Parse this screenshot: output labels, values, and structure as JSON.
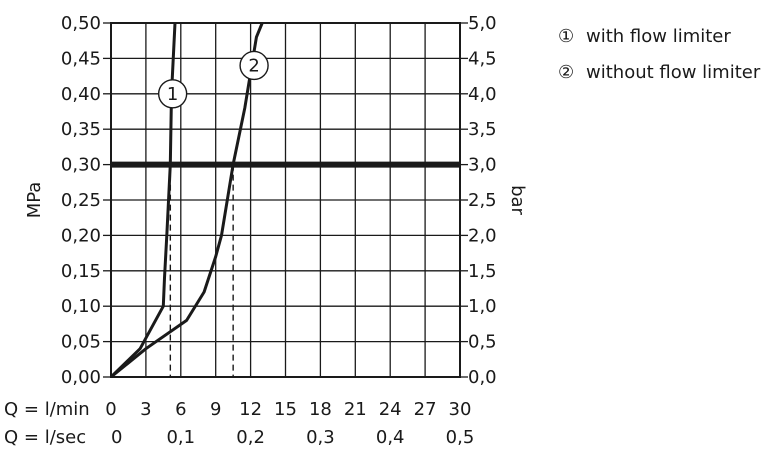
{
  "chart_data": {
    "type": "line",
    "x_axes": [
      {
        "label": "Q = l/min",
        "ticks": [
          "0",
          "3",
          "6",
          "9",
          "12",
          "15",
          "18",
          "21",
          "24",
          "27",
          "30"
        ],
        "range": [
          0,
          30
        ]
      },
      {
        "label": "Q = l/sec",
        "ticks": [
          "0",
          "0,1",
          "0,2",
          "0,3",
          "0,4",
          "0,5"
        ],
        "range": [
          0,
          0.5
        ]
      }
    ],
    "y_axes": [
      {
        "label": "MPa",
        "ticks": [
          "0,00",
          "0,05",
          "0,10",
          "0,15",
          "0,20",
          "0,25",
          "0,30",
          "0,35",
          "0,40",
          "0,45",
          "0,50"
        ],
        "range": [
          0,
          0.5
        ]
      },
      {
        "label": "bar",
        "ticks": [
          "0,0",
          "0,5",
          "1,0",
          "1,5",
          "2,0",
          "2,5",
          "3,0",
          "3,5",
          "4,0",
          "4,5",
          "5,0"
        ],
        "range": [
          0,
          5
        ]
      }
    ],
    "grid": true,
    "reference_line": {
      "y": 0.3
    },
    "series": [
      {
        "marker": "1",
        "name": "with flow limiter",
        "points": [
          [
            0,
            0
          ],
          [
            2.5,
            0.04
          ],
          [
            4.5,
            0.1
          ],
          [
            4.6,
            0.14
          ],
          [
            4.8,
            0.2
          ],
          [
            5.1,
            0.3
          ],
          [
            5.2,
            0.4
          ],
          [
            5.5,
            0.5
          ]
        ],
        "x_at_reference": 5.1,
        "label_at": [
          5.3,
          0.4
        ]
      },
      {
        "marker": "2",
        "name": "without flow limiter",
        "points": [
          [
            0,
            0
          ],
          [
            3,
            0.04
          ],
          [
            6.5,
            0.08
          ],
          [
            8,
            0.12
          ],
          [
            9,
            0.17
          ],
          [
            9.5,
            0.2
          ],
          [
            10.5,
            0.3
          ],
          [
            11.5,
            0.38
          ],
          [
            12.5,
            0.48
          ],
          [
            13,
            0.5
          ]
        ],
        "x_at_reference": 10.5,
        "label_at": [
          12.3,
          0.44
        ]
      }
    ],
    "legend": "top-right",
    "colors": {
      "line": "#1a1a1a",
      "grid": "#1a1a1a"
    }
  }
}
